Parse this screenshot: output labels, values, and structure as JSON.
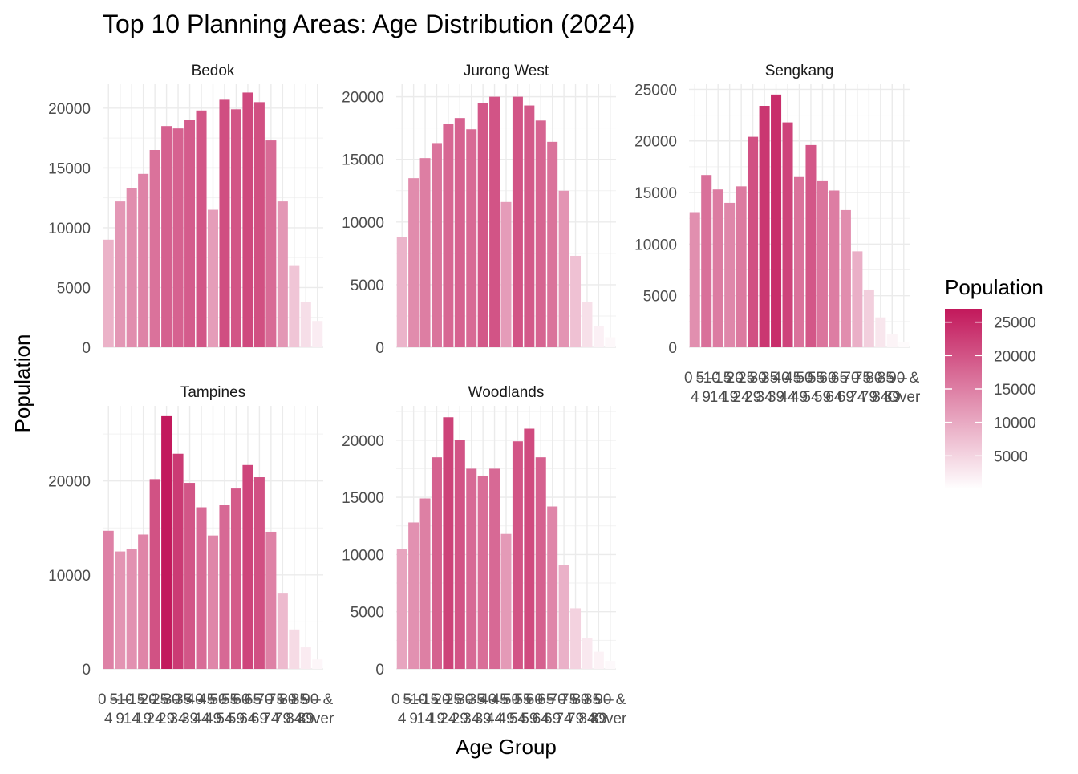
{
  "chart_data": {
    "type": "bar",
    "title": "Top 10 Planning Areas: Age Distribution (2024)",
    "xlabel": "Age Group",
    "ylabel": "Population",
    "categories": [
      "0 – 4",
      "5 – 9",
      "10 – 14",
      "15 – 19",
      "20 – 24",
      "25 – 29",
      "30 – 34",
      "35 – 39",
      "40 – 44",
      "45 – 49",
      "50 – 54",
      "55 – 59",
      "60 – 64",
      "65 – 69",
      "70 – 74",
      "75 – 79",
      "80 – 84",
      "85 – 89",
      "90 & Over"
    ],
    "panels": [
      {
        "name": "Bedok",
        "ylim": [
          0,
          22000
        ],
        "yticks": [
          0,
          5000,
          10000,
          15000,
          20000
        ],
        "values": [
          9000,
          12200,
          13300,
          14500,
          16500,
          18500,
          18300,
          19000,
          19800,
          11500,
          20700,
          19900,
          21300,
          20500,
          17300,
          12200,
          6800,
          3800,
          2200
        ]
      },
      {
        "name": "Jurong West",
        "ylim": [
          0,
          21000
        ],
        "yticks": [
          0,
          5000,
          10000,
          15000,
          20000
        ],
        "values": [
          8800,
          13500,
          15100,
          16300,
          17800,
          18300,
          17400,
          19500,
          20000,
          11600,
          20000,
          19300,
          18100,
          16400,
          12500,
          7300,
          3600,
          1700,
          800
        ]
      },
      {
        "name": "Sengkang",
        "ylim": [
          0,
          25500
        ],
        "yticks": [
          0,
          5000,
          10000,
          15000,
          20000,
          25000
        ],
        "values": [
          13100,
          16700,
          15300,
          14000,
          15600,
          20400,
          23400,
          24500,
          21800,
          16500,
          19600,
          16100,
          15200,
          13300,
          9300,
          5600,
          2900,
          1300,
          500
        ]
      },
      {
        "name": "Tampines",
        "ylim": [
          0,
          28000
        ],
        "yticks": [
          0,
          10000,
          20000
        ],
        "values": [
          14700,
          12500,
          12800,
          14300,
          20200,
          26900,
          22900,
          19800,
          17200,
          14200,
          17500,
          19200,
          21700,
          20400,
          14600,
          8100,
          4200,
          2300,
          1000
        ]
      },
      {
        "name": "Woodlands",
        "ylim": [
          0,
          23000
        ],
        "yticks": [
          0,
          5000,
          10000,
          15000,
          20000
        ],
        "values": [
          10500,
          12800,
          14900,
          18500,
          22000,
          20000,
          17500,
          16900,
          17500,
          11800,
          19900,
          21000,
          18500,
          14200,
          9100,
          5300,
          2700,
          1500,
          700
        ]
      }
    ],
    "legend": {
      "title": "Population",
      "position": "right",
      "ticks": [
        5000,
        10000,
        15000,
        20000,
        25000
      ]
    },
    "colors": {
      "low": "#ffffff",
      "high": "#c2185b",
      "grid": "#ebebeb"
    },
    "grid": true
  }
}
